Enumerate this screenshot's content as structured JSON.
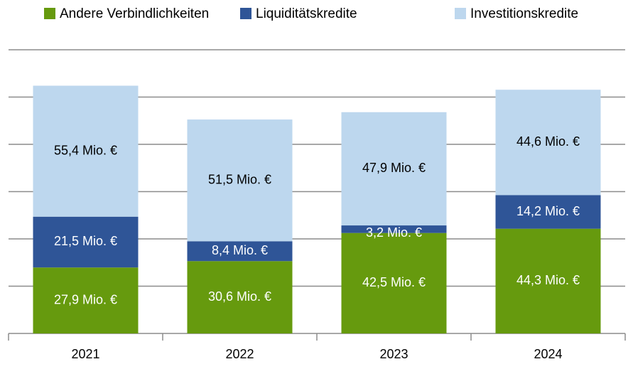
{
  "chart_data": {
    "type": "stacked_bar",
    "categories": [
      "2021",
      "2022",
      "2023",
      "2024"
    ],
    "series": [
      {
        "name": "Andere Verbindlichkeiten",
        "color": "#669a0e",
        "values": [
          27.9,
          30.6,
          42.5,
          44.3
        ],
        "value_labels": [
          "27,9 Mio. €",
          "30,6 Mio. €",
          "42,5 Mio. €",
          "44,3 Mio. €"
        ]
      },
      {
        "name": "Liquiditätskredite",
        "color": "#2f5597",
        "values": [
          21.5,
          8.4,
          3.2,
          14.2
        ],
        "value_labels": [
          "21,5 Mio. €",
          "8,4 Mio. €",
          "3,2 Mio. €",
          "14,2 Mio. €"
        ]
      },
      {
        "name": "Investitionskredite",
        "color": "#bdd7ee",
        "values": [
          55.4,
          51.5,
          47.9,
          44.6
        ],
        "value_labels": [
          "55,4 Mio. €",
          "51,5 Mio. €",
          "47,9 Mio. €",
          "44,6 Mio. €"
        ]
      }
    ],
    "ylim": [
      0,
      120
    ],
    "yticks": [
      0,
      20,
      40,
      60,
      80,
      100,
      120
    ],
    "grid": true,
    "legend": "top"
  }
}
